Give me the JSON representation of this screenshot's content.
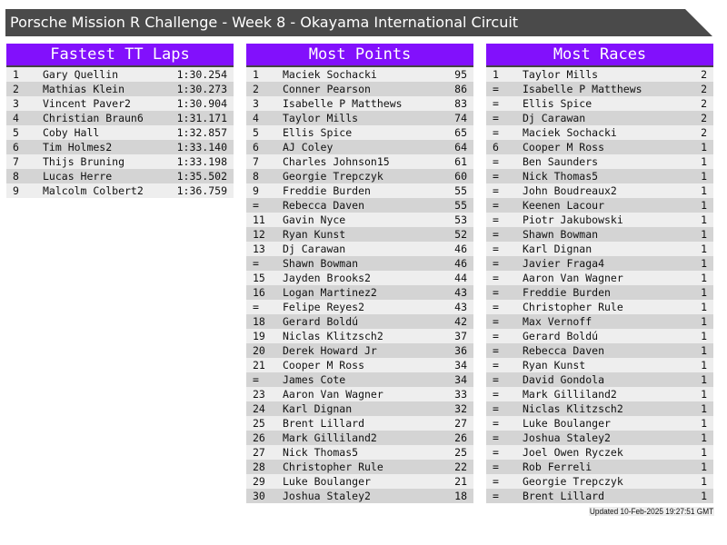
{
  "title": "Porsche Mission R Challenge - Week 8 - Okayama International Circuit",
  "accent": "#8210fc",
  "panels": [
    {
      "heading": "Fastest TT Laps",
      "rows": [
        [
          "1",
          "Gary Quellin",
          "1:30.254"
        ],
        [
          "2",
          "Mathias Klein",
          "1:30.273"
        ],
        [
          "3",
          "Vincent Paver2",
          "1:30.904"
        ],
        [
          "4",
          "Christian Braun6",
          "1:31.171"
        ],
        [
          "5",
          "Coby Hall",
          "1:32.857"
        ],
        [
          "6",
          "Tim Holmes2",
          "1:33.140"
        ],
        [
          "7",
          "Thijs Bruning",
          "1:33.198"
        ],
        [
          "8",
          "Lucas Herre",
          "1:35.502"
        ],
        [
          "9",
          "Malcolm Colbert2",
          "1:36.759"
        ]
      ]
    },
    {
      "heading": "Most Points",
      "rows": [
        [
          "1",
          "Maciek Sochacki",
          "95"
        ],
        [
          "2",
          "Conner Pearson",
          "86"
        ],
        [
          "3",
          "Isabelle P Matthews",
          "83"
        ],
        [
          "4",
          "Taylor Mills",
          "74"
        ],
        [
          "5",
          "Ellis Spice",
          "65"
        ],
        [
          "6",
          "AJ Coley",
          "64"
        ],
        [
          "7",
          "Charles Johnson15",
          "61"
        ],
        [
          "8",
          "Georgie Trepczyk",
          "60"
        ],
        [
          "9",
          "Freddie Burden",
          "55"
        ],
        [
          "=",
          "Rebecca Daven",
          "55"
        ],
        [
          "11",
          "Gavin Nyce",
          "53"
        ],
        [
          "12",
          "Ryan Kunst",
          "52"
        ],
        [
          "13",
          "Dj Carawan",
          "46"
        ],
        [
          "=",
          "Shawn Bowman",
          "46"
        ],
        [
          "15",
          "Jayden Brooks2",
          "44"
        ],
        [
          "16",
          "Logan Martinez2",
          "43"
        ],
        [
          "=",
          "Felipe Reyes2",
          "43"
        ],
        [
          "18",
          "Gerard Boldú",
          "42"
        ],
        [
          "19",
          "Niclas Klitzsch2",
          "37"
        ],
        [
          "20",
          "Derek Howard Jr",
          "36"
        ],
        [
          "21",
          "Cooper M Ross",
          "34"
        ],
        [
          "=",
          "James Cote",
          "34"
        ],
        [
          "23",
          "Aaron Van Wagner",
          "33"
        ],
        [
          "24",
          "Karl Dignan",
          "32"
        ],
        [
          "25",
          "Brent Lillard",
          "27"
        ],
        [
          "26",
          "Mark Gilliland2",
          "26"
        ],
        [
          "27",
          "Nick Thomas5",
          "25"
        ],
        [
          "28",
          "Christopher Rule",
          "22"
        ],
        [
          "29",
          "Luke Boulanger",
          "21"
        ],
        [
          "30",
          "Joshua Staley2",
          "18"
        ]
      ]
    },
    {
      "heading": "Most Races",
      "rows": [
        [
          "1",
          "Taylor Mills",
          "2"
        ],
        [
          "=",
          "Isabelle P Matthews",
          "2"
        ],
        [
          "=",
          "Ellis Spice",
          "2"
        ],
        [
          "=",
          "Dj Carawan",
          "2"
        ],
        [
          "=",
          "Maciek Sochacki",
          "2"
        ],
        [
          "6",
          "Cooper M Ross",
          "1"
        ],
        [
          "=",
          "Ben Saunders",
          "1"
        ],
        [
          "=",
          "Nick Thomas5",
          "1"
        ],
        [
          "=",
          "John Boudreaux2",
          "1"
        ],
        [
          "=",
          "Keenen Lacour",
          "1"
        ],
        [
          "=",
          "Piotr Jakubowski",
          "1"
        ],
        [
          "=",
          "Shawn Bowman",
          "1"
        ],
        [
          "=",
          "Karl Dignan",
          "1"
        ],
        [
          "=",
          "Javier Fraga4",
          "1"
        ],
        [
          "=",
          "Aaron Van Wagner",
          "1"
        ],
        [
          "=",
          "Freddie Burden",
          "1"
        ],
        [
          "=",
          "Christopher Rule",
          "1"
        ],
        [
          "=",
          "Max Vernoff",
          "1"
        ],
        [
          "=",
          "Gerard Boldú",
          "1"
        ],
        [
          "=",
          "Rebecca Daven",
          "1"
        ],
        [
          "=",
          "Ryan Kunst",
          "1"
        ],
        [
          "=",
          "David Gondola",
          "1"
        ],
        [
          "=",
          "Mark Gilliland2",
          "1"
        ],
        [
          "=",
          "Niclas Klitzsch2",
          "1"
        ],
        [
          "=",
          "Luke Boulanger",
          "1"
        ],
        [
          "=",
          "Joshua Staley2",
          "1"
        ],
        [
          "=",
          "Joel Owen Ryczek",
          "1"
        ],
        [
          "=",
          "Rob Ferreli",
          "1"
        ],
        [
          "=",
          "Georgie Trepczyk",
          "1"
        ],
        [
          "=",
          "Brent Lillard",
          "1"
        ]
      ]
    }
  ],
  "footer": "Updated 10-Feb-2025 19:27:51 GMT"
}
